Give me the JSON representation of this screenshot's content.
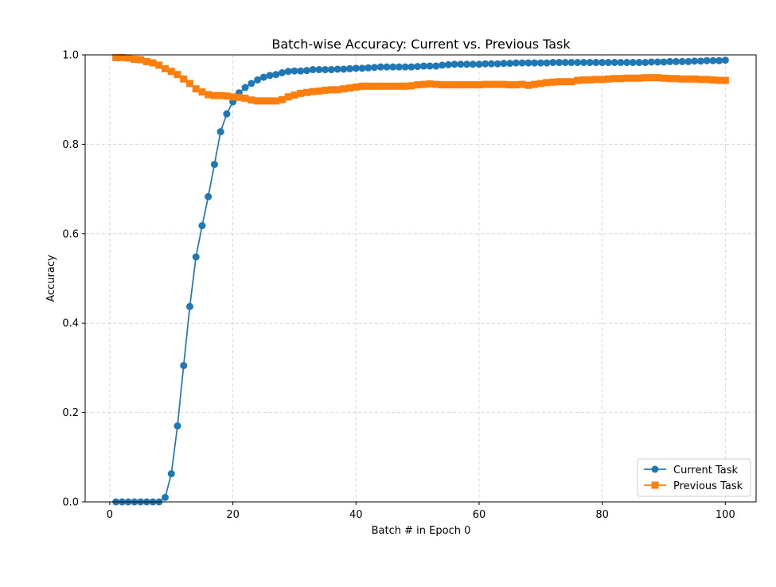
{
  "chart_data": {
    "type": "line",
    "title": "Batch-wise Accuracy: Current vs. Previous Task",
    "xlabel": "Batch # in Epoch 0",
    "ylabel": "Accuracy",
    "xlim": [
      -4,
      105
    ],
    "ylim": [
      0,
      1.0
    ],
    "xticks": [
      0,
      20,
      40,
      60,
      80,
      100
    ],
    "xtick_labels": [
      "0",
      "20",
      "40",
      "60",
      "80",
      "100"
    ],
    "yticks": [
      0,
      0.2,
      0.4,
      0.6,
      0.8,
      1.0
    ],
    "ytick_labels": [
      "0.0",
      "0.2",
      "0.4",
      "0.6",
      "0.8",
      "1.0"
    ],
    "grid": true,
    "legend_position": "lower-right",
    "series": [
      {
        "name": "Current Task",
        "color": "#1f77b4",
        "marker": "circle",
        "x": [
          1,
          2,
          3,
          4,
          5,
          6,
          7,
          8,
          9,
          10,
          11,
          12,
          13,
          14,
          15,
          16,
          17,
          18,
          19,
          20,
          21,
          22,
          23,
          24,
          25,
          26,
          27,
          28,
          29,
          30,
          31,
          32,
          33,
          34,
          35,
          36,
          37,
          38,
          39,
          40,
          41,
          42,
          43,
          44,
          45,
          46,
          47,
          48,
          49,
          50,
          51,
          52,
          53,
          54,
          55,
          56,
          57,
          58,
          59,
          60,
          61,
          62,
          63,
          64,
          65,
          66,
          67,
          68,
          69,
          70,
          71,
          72,
          73,
          74,
          75,
          76,
          77,
          78,
          79,
          80,
          81,
          82,
          83,
          84,
          85,
          86,
          87,
          88,
          89,
          90,
          91,
          92,
          93,
          94,
          95,
          96,
          97,
          98,
          99,
          100
        ],
        "values": [
          0.0,
          0.0,
          0.0,
          0.0,
          0.0,
          0.0,
          0.0,
          0.0,
          0.01,
          0.063,
          0.17,
          0.305,
          0.437,
          0.548,
          0.618,
          0.683,
          0.755,
          0.828,
          0.868,
          0.895,
          0.915,
          0.927,
          0.936,
          0.944,
          0.95,
          0.954,
          0.956,
          0.96,
          0.963,
          0.964,
          0.964,
          0.965,
          0.967,
          0.967,
          0.967,
          0.967,
          0.968,
          0.968,
          0.969,
          0.97,
          0.97,
          0.971,
          0.972,
          0.973,
          0.973,
          0.973,
          0.973,
          0.973,
          0.973,
          0.974,
          0.975,
          0.975,
          0.975,
          0.977,
          0.978,
          0.979,
          0.979,
          0.979,
          0.979,
          0.979,
          0.98,
          0.98,
          0.98,
          0.981,
          0.981,
          0.982,
          0.982,
          0.982,
          0.982,
          0.982,
          0.982,
          0.983,
          0.983,
          0.983,
          0.983,
          0.983,
          0.983,
          0.983,
          0.983,
          0.983,
          0.983,
          0.983,
          0.983,
          0.983,
          0.983,
          0.983,
          0.983,
          0.984,
          0.984,
          0.984,
          0.985,
          0.985,
          0.985,
          0.985,
          0.986,
          0.986,
          0.987,
          0.987,
          0.987,
          0.988
        ]
      },
      {
        "name": "Previous Task",
        "color": "#ff7f0e",
        "marker": "square",
        "x": [
          1,
          2,
          3,
          4,
          5,
          6,
          7,
          8,
          9,
          10,
          11,
          12,
          13,
          14,
          15,
          16,
          17,
          18,
          19,
          20,
          21,
          22,
          23,
          24,
          25,
          26,
          27,
          28,
          29,
          30,
          31,
          32,
          33,
          34,
          35,
          36,
          37,
          38,
          39,
          40,
          41,
          42,
          43,
          44,
          45,
          46,
          47,
          48,
          49,
          50,
          51,
          52,
          53,
          54,
          55,
          56,
          57,
          58,
          59,
          60,
          61,
          62,
          63,
          64,
          65,
          66,
          67,
          68,
          69,
          70,
          71,
          72,
          73,
          74,
          75,
          76,
          77,
          78,
          79,
          80,
          81,
          82,
          83,
          84,
          85,
          86,
          87,
          88,
          89,
          90,
          91,
          92,
          93,
          94,
          95,
          96,
          97,
          98,
          99,
          100
        ],
        "values": [
          0.994,
          0.994,
          0.993,
          0.99,
          0.989,
          0.985,
          0.982,
          0.977,
          0.969,
          0.963,
          0.956,
          0.946,
          0.936,
          0.924,
          0.917,
          0.911,
          0.909,
          0.909,
          0.908,
          0.906,
          0.905,
          0.903,
          0.899,
          0.897,
          0.897,
          0.897,
          0.897,
          0.9,
          0.906,
          0.91,
          0.914,
          0.916,
          0.918,
          0.919,
          0.921,
          0.922,
          0.922,
          0.924,
          0.926,
          0.928,
          0.93,
          0.93,
          0.93,
          0.93,
          0.93,
          0.93,
          0.93,
          0.93,
          0.931,
          0.933,
          0.934,
          0.935,
          0.934,
          0.933,
          0.933,
          0.933,
          0.933,
          0.933,
          0.933,
          0.933,
          0.934,
          0.934,
          0.934,
          0.934,
          0.933,
          0.933,
          0.934,
          0.932,
          0.934,
          0.936,
          0.938,
          0.939,
          0.94,
          0.94,
          0.94,
          0.943,
          0.944,
          0.944,
          0.945,
          0.945,
          0.946,
          0.947,
          0.947,
          0.948,
          0.948,
          0.948,
          0.949,
          0.949,
          0.949,
          0.948,
          0.947,
          0.947,
          0.946,
          0.946,
          0.946,
          0.945,
          0.945,
          0.944,
          0.943,
          0.943
        ]
      }
    ]
  }
}
